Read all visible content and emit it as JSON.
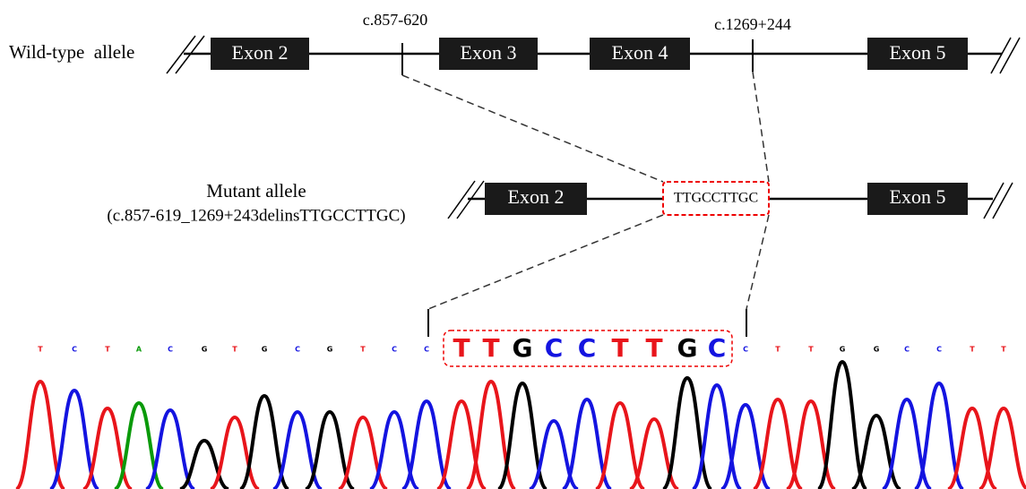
{
  "wild_type": {
    "label": "Wild-type  allele",
    "exons": [
      "Exon 2",
      "Exon 3",
      "Exon 4",
      "Exon 5"
    ],
    "breakpoints": [
      "c.857-620",
      "c.1269+244"
    ]
  },
  "mutant": {
    "label": "Mutant allele",
    "sublabel": "(c.857-619_1269+243delinsTTGCCTTGC)",
    "exons": [
      "Exon 2",
      "Exon 5"
    ],
    "insertion": "TTGCCTTGC"
  },
  "sequence": {
    "before": [
      "T",
      "C",
      "T",
      "A",
      "C",
      "G",
      "T",
      "G",
      "C",
      "G",
      "T",
      "C",
      "C"
    ],
    "insert": [
      "T",
      "T",
      "G",
      "C",
      "C",
      "T",
      "T",
      "G",
      "C"
    ],
    "after": [
      "C",
      "T",
      "T",
      "G",
      "G",
      "C",
      "C",
      "T",
      "T"
    ]
  }
}
